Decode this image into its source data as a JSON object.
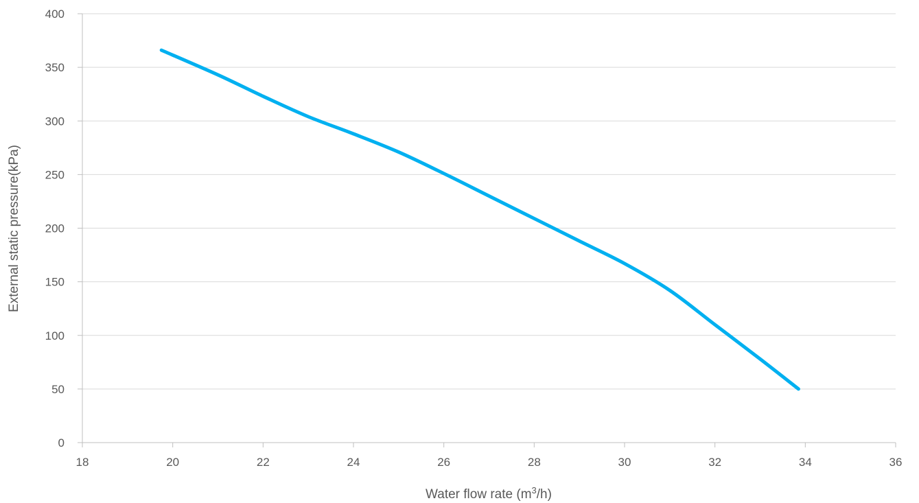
{
  "chart_data": {
    "type": "line",
    "xlabel_main": "Water flow rate (m",
    "xlabel_sup": "3",
    "xlabel_tail": "/h)",
    "ylabel": "External static pressure(kPa)",
    "xlim": [
      18,
      36
    ],
    "ylim": [
      0,
      400
    ],
    "xticks": [
      18,
      20,
      22,
      24,
      26,
      28,
      30,
      32,
      34,
      36
    ],
    "yticks": [
      0,
      50,
      100,
      150,
      200,
      250,
      300,
      350,
      400
    ],
    "grid": "horizontal",
    "series": [
      {
        "color": "#00b0f0",
        "x": [
          19.75,
          21,
          22,
          23,
          24,
          25,
          26,
          27,
          28,
          29,
          30,
          31,
          32,
          33,
          33.85
        ],
        "y": [
          366,
          343,
          323,
          304,
          288,
          271,
          251,
          230,
          209,
          188,
          167,
          142,
          110,
          78,
          50
        ]
      }
    ]
  }
}
